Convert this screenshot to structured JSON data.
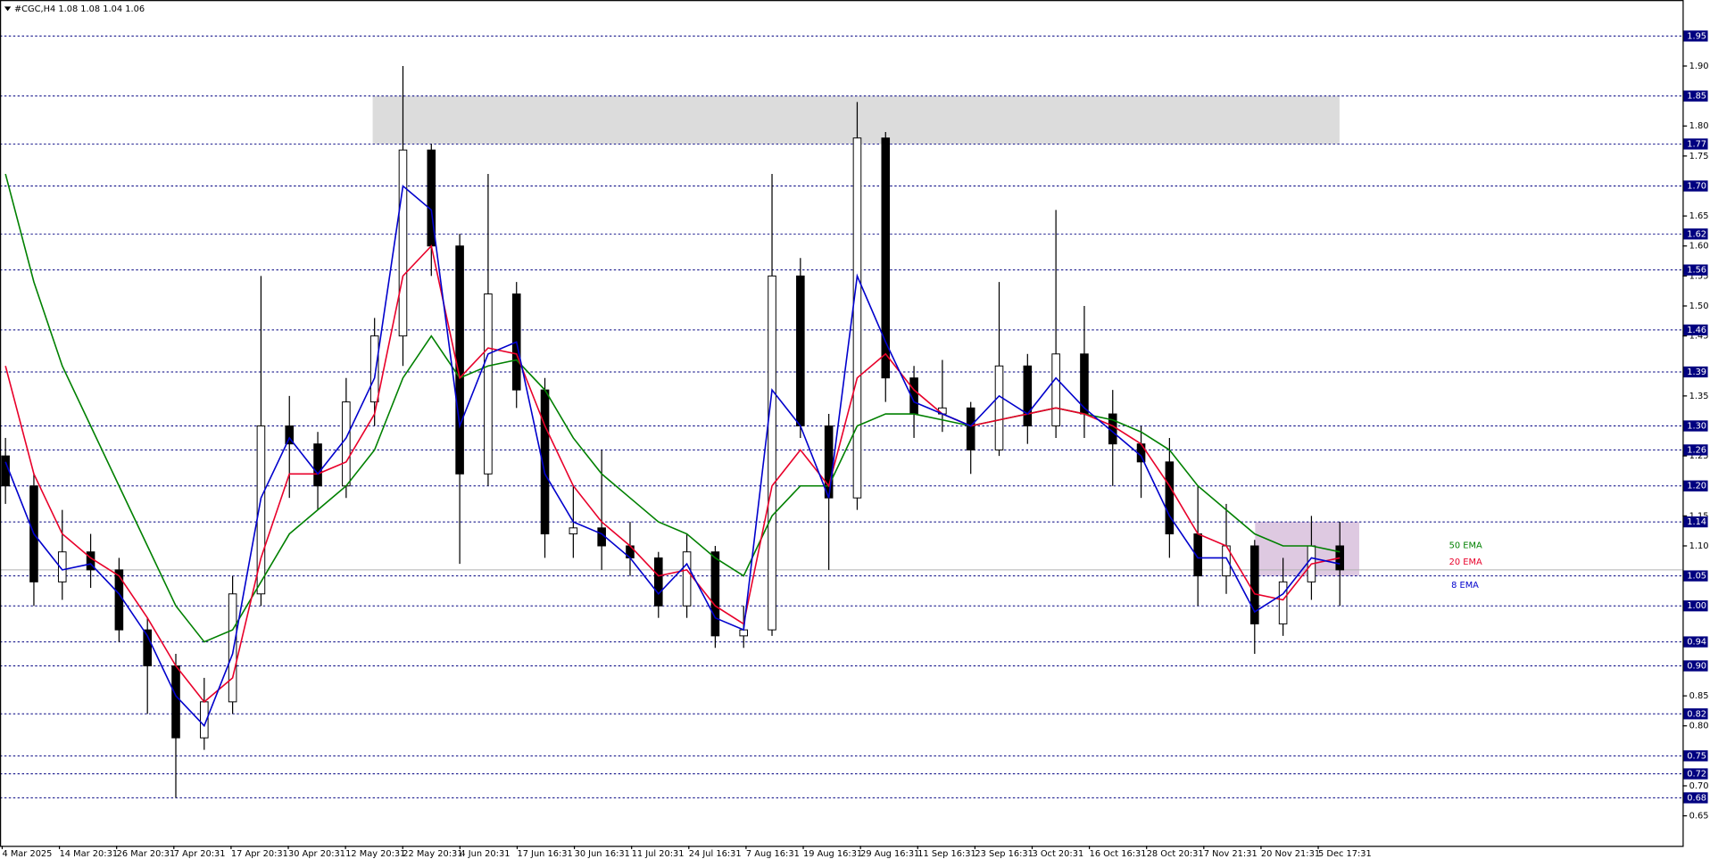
{
  "chart_data": {
    "type": "candlestick",
    "title": "#CGC,H4  1.08 1.08 1.04 1.06",
    "x_labels": [
      "4 Mar 2025",
      "14 Mar 20:31",
      "26 Mar 20:31",
      "7 Apr 20:31",
      "17 Apr 20:31",
      "30 Apr 20:31",
      "12 May 20:31",
      "22 May 20:31",
      "4 Jun 20:31",
      "17 Jun 16:31",
      "30 Jun 16:31",
      "11 Jul 20:31",
      "24 Jul 16:31",
      "7 Aug 16:31",
      "19 Aug 16:31",
      "29 Aug 16:31",
      "11 Sep 16:31",
      "23 Sep 16:31",
      "3 Oct 20:31",
      "16 Oct 16:31",
      "28 Oct 20:31",
      "7 Nov 21:31",
      "20 Nov 21:31",
      "5 Dec 17:31"
    ],
    "open": [
      1.25,
      1.2,
      1.04,
      1.09,
      1.06,
      0.96,
      0.9,
      0.78,
      0.84,
      1.02,
      1.3,
      1.27,
      1.2,
      1.34,
      1.45,
      1.76,
      1.6,
      1.22,
      1.52,
      1.36,
      1.12,
      1.13,
      1.1,
      1.08,
      1.0,
      1.09,
      0.95,
      0.96,
      1.55,
      1.3,
      1.18,
      1.78,
      1.38,
      1.32,
      1.33,
      1.26,
      1.4,
      1.3,
      1.42,
      1.32,
      1.27,
      1.24,
      1.12,
      1.05,
      1.1,
      0.97,
      1.04,
      1.1
    ],
    "high": [
      1.28,
      1.22,
      1.16,
      1.12,
      1.08,
      0.98,
      0.92,
      0.88,
      1.05,
      1.55,
      1.35,
      1.29,
      1.38,
      1.48,
      1.9,
      1.77,
      1.62,
      1.72,
      1.54,
      1.38,
      1.2,
      1.26,
      1.14,
      1.09,
      1.12,
      1.1,
      1.0,
      1.72,
      1.58,
      1.32,
      1.84,
      1.79,
      1.4,
      1.41,
      1.34,
      1.54,
      1.42,
      1.66,
      1.5,
      1.36,
      1.3,
      1.28,
      1.2,
      1.17,
      1.11,
      1.08,
      1.15,
      1.14
    ],
    "low": [
      1.17,
      1.0,
      1.01,
      1.03,
      0.94,
      0.82,
      0.68,
      0.76,
      0.82,
      1.0,
      1.18,
      1.16,
      1.18,
      1.3,
      1.4,
      1.55,
      1.07,
      1.2,
      1.33,
      1.08,
      1.08,
      1.06,
      1.05,
      0.98,
      0.98,
      0.93,
      0.93,
      0.95,
      1.28,
      1.06,
      1.16,
      1.34,
      1.28,
      1.29,
      1.22,
      1.25,
      1.27,
      1.28,
      1.28,
      1.2,
      1.18,
      1.08,
      1.0,
      1.02,
      0.92,
      0.95,
      1.01,
      1.0
    ],
    "close": [
      1.2,
      1.04,
      1.09,
      1.06,
      0.96,
      0.9,
      0.78,
      0.84,
      1.02,
      1.3,
      1.27,
      1.2,
      1.34,
      1.45,
      1.76,
      1.6,
      1.22,
      1.52,
      1.36,
      1.12,
      1.13,
      1.1,
      1.08,
      1.0,
      1.09,
      0.95,
      0.96,
      1.55,
      1.3,
      1.18,
      1.78,
      1.38,
      1.32,
      1.33,
      1.26,
      1.4,
      1.3,
      1.42,
      1.32,
      1.27,
      1.24,
      1.12,
      1.05,
      1.1,
      0.97,
      1.04,
      1.1,
      1.06
    ],
    "series": [
      {
        "name": "50 EMA",
        "color": "#008000",
        "values": [
          1.72,
          1.54,
          1.4,
          1.3,
          1.2,
          1.1,
          1.0,
          0.94,
          0.96,
          1.04,
          1.12,
          1.16,
          1.2,
          1.26,
          1.38,
          1.45,
          1.38,
          1.4,
          1.41,
          1.36,
          1.28,
          1.22,
          1.18,
          1.14,
          1.12,
          1.08,
          1.05,
          1.15,
          1.2,
          1.2,
          1.3,
          1.32,
          1.32,
          1.31,
          1.3,
          1.31,
          1.32,
          1.33,
          1.32,
          1.31,
          1.29,
          1.26,
          1.2,
          1.16,
          1.12,
          1.1,
          1.1,
          1.09
        ]
      },
      {
        "name": "20 EMA",
        "color": "#e8002a",
        "values": [
          1.4,
          1.22,
          1.12,
          1.08,
          1.05,
          0.98,
          0.9,
          0.84,
          0.88,
          1.08,
          1.22,
          1.22,
          1.24,
          1.32,
          1.55,
          1.6,
          1.38,
          1.43,
          1.42,
          1.3,
          1.2,
          1.14,
          1.1,
          1.05,
          1.06,
          1.0,
          0.97,
          1.2,
          1.26,
          1.2,
          1.38,
          1.42,
          1.36,
          1.32,
          1.3,
          1.31,
          1.32,
          1.33,
          1.32,
          1.3,
          1.27,
          1.2,
          1.12,
          1.1,
          1.02,
          1.01,
          1.07,
          1.08
        ]
      },
      {
        "name": "8 EMA",
        "color": "#0000cc",
        "values": [
          1.24,
          1.12,
          1.06,
          1.07,
          1.02,
          0.95,
          0.85,
          0.8,
          0.92,
          1.18,
          1.28,
          1.22,
          1.28,
          1.38,
          1.7,
          1.66,
          1.3,
          1.42,
          1.44,
          1.22,
          1.14,
          1.12,
          1.08,
          1.02,
          1.07,
          0.98,
          0.96,
          1.36,
          1.3,
          1.18,
          1.55,
          1.44,
          1.34,
          1.32,
          1.3,
          1.35,
          1.32,
          1.38,
          1.33,
          1.29,
          1.25,
          1.15,
          1.08,
          1.08,
          0.99,
          1.02,
          1.08,
          1.07
        ]
      }
    ],
    "ylim": [
      0.6,
      2.01
    ],
    "yticks": [
      {
        "value": 1.9,
        "label": "1.90"
      },
      {
        "value": 1.8,
        "label": "1.80"
      },
      1.75,
      1.65,
      {
        "value": 1.6,
        "label": "1.60"
      },
      1.55,
      {
        "value": 1.5,
        "label": "1.50"
      },
      1.45,
      1.35,
      1.25,
      1.15,
      {
        "value": 1.1,
        "label": "1.10"
      },
      0.85,
      {
        "value": 0.8,
        "label": "0.80"
      },
      {
        "value": 0.7,
        "label": "0.70"
      },
      0.65
    ],
    "levels": [
      1.95,
      1.85,
      1.77,
      {
        "value": 1.7,
        "label": "1.70"
      },
      1.62,
      1.56,
      1.46,
      1.39,
      {
        "value": 1.3,
        "label": "1.30"
      },
      1.26,
      {
        "value": 1.2,
        "label": "1.20"
      },
      1.14,
      1.05,
      {
        "value": 1.0,
        "label": "1.00"
      },
      0.94,
      {
        "value": 0.9,
        "label": "0.90"
      },
      0.82,
      0.75,
      0.72,
      0.68
    ],
    "price_line": 1.06,
    "zones": [
      {
        "low": 1.77,
        "high": 1.85,
        "color": "#dcdcdc"
      },
      {
        "low": 1.05,
        "high": 1.14,
        "color": "#d8c0dc"
      }
    ]
  }
}
